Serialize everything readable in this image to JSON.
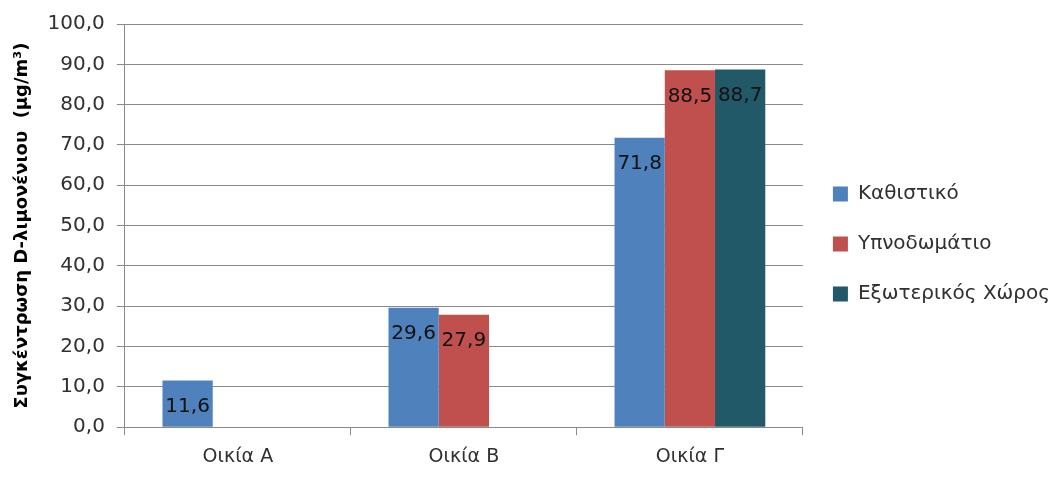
{
  "chart_data": {
    "type": "bar",
    "ylabel": "Συγκέντρωση D-λιμονένιου  (μg/m³)",
    "categories": [
      "Οικία Α",
      "Οικία Β",
      "Οικία Γ"
    ],
    "series": [
      {
        "name": "Καθιστικό",
        "color": "#4f81bd",
        "values": [
          11.6,
          29.6,
          71.8
        ],
        "value_labels": [
          "11,6",
          "29,6",
          "71,8"
        ]
      },
      {
        "name": "Υπνοδωμάτιο",
        "color": "#c0504d",
        "values": [
          null,
          27.9,
          88.5
        ],
        "value_labels": [
          null,
          "27,9",
          "88,5"
        ]
      },
      {
        "name": "Εξωτερικός Χώρος",
        "color": "#215968",
        "values": [
          null,
          null,
          88.7
        ],
        "value_labels": [
          null,
          null,
          "88,7"
        ]
      }
    ],
    "ylim": [
      0,
      100
    ],
    "yticks": [
      {
        "value": 0,
        "label": "0,0"
      },
      {
        "value": 10,
        "label": "10,0"
      },
      {
        "value": 20,
        "label": "20,0"
      },
      {
        "value": 30,
        "label": "30,0"
      },
      {
        "value": 40,
        "label": "40,0"
      },
      {
        "value": 50,
        "label": "50,0"
      },
      {
        "value": 60,
        "label": "60,0"
      },
      {
        "value": 70,
        "label": "70,0"
      },
      {
        "value": 80,
        "label": "80,0"
      },
      {
        "value": 90,
        "label": "90,0"
      },
      {
        "value": 100,
        "label": "100,0"
      }
    ],
    "grid": "y",
    "legend": "right"
  }
}
